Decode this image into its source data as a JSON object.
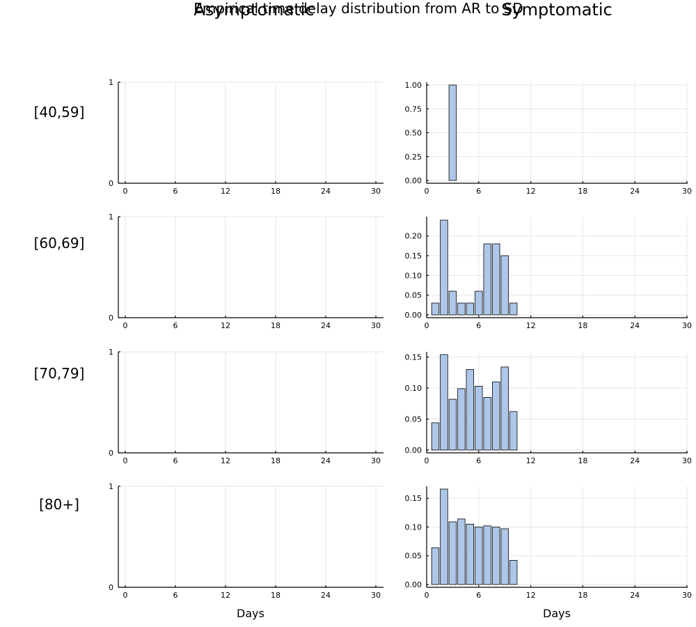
{
  "title": "Empirical time delay distribution from AR to SD",
  "column_titles": [
    "Asymptomatic",
    "Symptomatic"
  ],
  "row_labels": [
    "[40,59]",
    "[60,69]",
    "[70,79]",
    "[80+]"
  ],
  "xlabel": "Days",
  "bar_color": "#aec7e8",
  "chart_data": [
    {
      "type": "bar",
      "row": "[40,59]",
      "column": "Asymptomatic",
      "x": [],
      "values": [],
      "xlim": [
        0,
        30
      ],
      "xticks": [
        0,
        6,
        12,
        18,
        24,
        30
      ],
      "ylim": [
        0,
        1
      ],
      "yticks": [
        "0",
        "1"
      ],
      "grid": true
    },
    {
      "type": "bar",
      "row": "[40,59]",
      "column": "Symptomatic",
      "x": [
        3
      ],
      "values": [
        1.0
      ],
      "xlim": [
        0,
        30
      ],
      "xticks": [
        0,
        6,
        12,
        18,
        24,
        30
      ],
      "ylim": [
        0,
        1.0
      ],
      "yticks": [
        "0.00",
        "0.25",
        "0.50",
        "0.75",
        "1.00"
      ],
      "grid": true
    },
    {
      "type": "bar",
      "row": "[60,69]",
      "column": "Asymptomatic",
      "x": [],
      "values": [],
      "xlim": [
        0,
        30
      ],
      "xticks": [
        0,
        6,
        12,
        18,
        24,
        30
      ],
      "ylim": [
        0,
        1
      ],
      "yticks": [
        "0",
        "1"
      ],
      "grid": true
    },
    {
      "type": "bar",
      "row": "[60,69]",
      "column": "Symptomatic",
      "x": [
        1,
        2,
        3,
        4,
        5,
        6,
        7,
        8,
        9,
        10
      ],
      "values": [
        0.03,
        0.24,
        0.06,
        0.03,
        0.03,
        0.06,
        0.18,
        0.18,
        0.15,
        0.03
      ],
      "xlim": [
        0,
        30
      ],
      "xticks": [
        0,
        6,
        12,
        18,
        24,
        30
      ],
      "ylim": [
        0,
        0.24
      ],
      "yticks": [
        "0.00",
        "0.05",
        "0.10",
        "0.15",
        "0.20"
      ],
      "grid": true
    },
    {
      "type": "bar",
      "row": "[70,79]",
      "column": "Asymptomatic",
      "x": [],
      "values": [],
      "xlim": [
        0,
        30
      ],
      "xticks": [
        0,
        6,
        12,
        18,
        24,
        30
      ],
      "ylim": [
        0,
        1
      ],
      "yticks": [
        "0",
        "1"
      ],
      "grid": true
    },
    {
      "type": "bar",
      "row": "[70,79]",
      "column": "Symptomatic",
      "x": [
        1,
        2,
        3,
        4,
        5,
        6,
        7,
        8,
        9,
        10
      ],
      "values": [
        0.044,
        0.154,
        0.082,
        0.099,
        0.13,
        0.103,
        0.085,
        0.11,
        0.134,
        0.062
      ],
      "xlim": [
        0,
        30
      ],
      "xticks": [
        0,
        6,
        12,
        18,
        24,
        30
      ],
      "ylim": [
        0,
        0.154
      ],
      "yticks": [
        "0.00",
        "0.05",
        "0.10",
        "0.15"
      ],
      "grid": true
    },
    {
      "type": "bar",
      "row": "[80+]",
      "column": "Asymptomatic",
      "x": [],
      "values": [],
      "xlim": [
        0,
        30
      ],
      "xticks": [
        0,
        6,
        12,
        18,
        24,
        30
      ],
      "ylim": [
        0,
        1
      ],
      "yticks": [
        "0",
        "1"
      ],
      "grid": true
    },
    {
      "type": "bar",
      "row": "[80+]",
      "column": "Symptomatic",
      "x": [
        1,
        2,
        3,
        4,
        5,
        6,
        7,
        8,
        9,
        10
      ],
      "values": [
        0.064,
        0.166,
        0.109,
        0.114,
        0.105,
        0.1,
        0.102,
        0.1,
        0.097,
        0.042
      ],
      "xlim": [
        0,
        30
      ],
      "xticks": [
        0,
        6,
        12,
        18,
        24,
        30
      ],
      "ylim": [
        0,
        0.166
      ],
      "yticks": [
        "0.00",
        "0.05",
        "0.10",
        "0.15"
      ],
      "grid": true
    }
  ]
}
